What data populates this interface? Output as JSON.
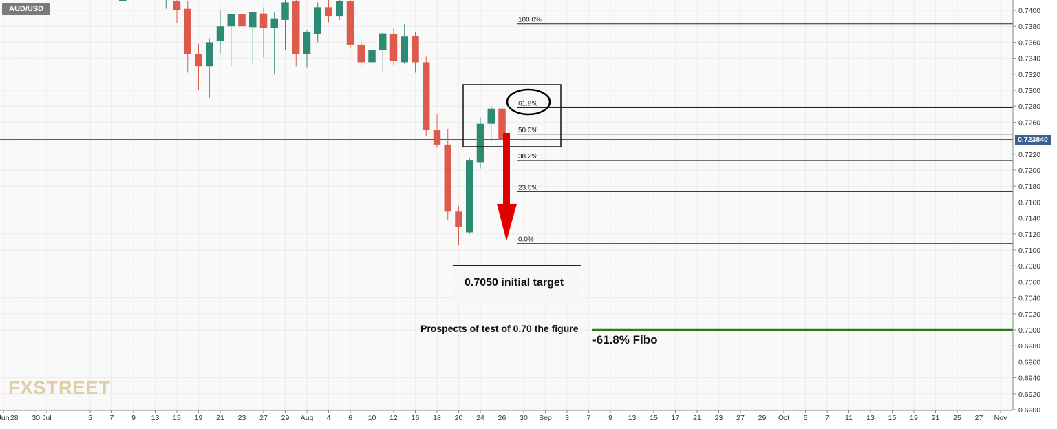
{
  "symbol": "AUD/USD",
  "last_price_label": "0.723840",
  "annotations": {
    "target": "0.7050 initial target",
    "prospects": "Prospects of test of 0.70 the figure",
    "fibo": "-61.8% Fibo"
  },
  "logo": "FXSTREET",
  "colors": {
    "up": "#2e8b73",
    "down": "#dd5b4d",
    "wick": "#666666",
    "grid": "#ececec",
    "fib_line": "#222222",
    "target_line": "#2d7a12",
    "arrow": "#e00000",
    "price_line": "#3b5f8f"
  },
  "chart_data": {
    "type": "candlestick",
    "title": "",
    "ylim": [
      0.69,
      0.7415
    ],
    "y_ticks": [
      "0.7400",
      "0.7380",
      "0.7360",
      "0.7340",
      "0.7320",
      "0.7300",
      "0.7280",
      "0.7260",
      "0.7240",
      "0.7220",
      "0.7200",
      "0.7180",
      "0.7160",
      "0.7140",
      "0.7120",
      "0.7100",
      "0.7080",
      "0.7060",
      "0.7040",
      "0.7020",
      "0.7000",
      "0.6980",
      "0.6960",
      "0.6940",
      "0.6920",
      "0.6900"
    ],
    "x_ticks": [
      {
        "day": 0,
        "label": "Jun"
      },
      {
        "day": 1,
        "label": "28"
      },
      {
        "day": 3,
        "label": "30"
      },
      {
        "day": 4,
        "label": "Jul"
      },
      {
        "day": 8,
        "label": "5"
      },
      {
        "day": 10,
        "label": "7"
      },
      {
        "day": 12,
        "label": "9"
      },
      {
        "day": 14,
        "label": "13"
      },
      {
        "day": 16,
        "label": "15"
      },
      {
        "day": 18,
        "label": "19"
      },
      {
        "day": 20,
        "label": "21"
      },
      {
        "day": 22,
        "label": "23"
      },
      {
        "day": 24,
        "label": "27"
      },
      {
        "day": 26,
        "label": "29"
      },
      {
        "day": 28,
        "label": "Aug"
      },
      {
        "day": 30,
        "label": "4"
      },
      {
        "day": 32,
        "label": "6"
      },
      {
        "day": 34,
        "label": "10"
      },
      {
        "day": 36,
        "label": "12"
      },
      {
        "day": 38,
        "label": "16"
      },
      {
        "day": 40,
        "label": "18"
      },
      {
        "day": 42,
        "label": "20"
      },
      {
        "day": 44,
        "label": "24"
      },
      {
        "day": 46,
        "label": "26"
      },
      {
        "day": 48,
        "label": "30"
      },
      {
        "day": 50,
        "label": "Sep"
      },
      {
        "day": 52,
        "label": "3"
      },
      {
        "day": 54,
        "label": "7"
      },
      {
        "day": 56,
        "label": "9"
      },
      {
        "day": 58,
        "label": "13"
      },
      {
        "day": 60,
        "label": "15"
      },
      {
        "day": 62,
        "label": "17"
      },
      {
        "day": 64,
        "label": "21"
      },
      {
        "day": 66,
        "label": "23"
      },
      {
        "day": 68,
        "label": "27"
      },
      {
        "day": 70,
        "label": "29"
      },
      {
        "day": 72,
        "label": "Oct"
      },
      {
        "day": 74,
        "label": "5"
      },
      {
        "day": 76,
        "label": "7"
      },
      {
        "day": 78,
        "label": "11"
      },
      {
        "day": 80,
        "label": "13"
      },
      {
        "day": 82,
        "label": "15"
      },
      {
        "day": 84,
        "label": "19"
      },
      {
        "day": 86,
        "label": "21"
      },
      {
        "day": 88,
        "label": "25"
      },
      {
        "day": 90,
        "label": "27"
      },
      {
        "day": 92,
        "label": "Nov"
      }
    ],
    "candles": [
      {
        "day": 11,
        "o": 0.7412,
        "h": 0.7415,
        "l": 0.7411,
        "c": 0.7413
      },
      {
        "day": 15,
        "o": 0.7413,
        "h": 0.7415,
        "l": 0.7402,
        "c": 0.7415
      },
      {
        "day": 16,
        "o": 0.7412,
        "h": 0.7415,
        "l": 0.7384,
        "c": 0.74
      },
      {
        "day": 17,
        "o": 0.7402,
        "h": 0.7412,
        "l": 0.7322,
        "c": 0.7345
      },
      {
        "day": 18,
        "o": 0.7345,
        "h": 0.7358,
        "l": 0.73,
        "c": 0.733
      },
      {
        "day": 19,
        "o": 0.733,
        "h": 0.7365,
        "l": 0.729,
        "c": 0.736
      },
      {
        "day": 20,
        "o": 0.7362,
        "h": 0.74,
        "l": 0.7345,
        "c": 0.738
      },
      {
        "day": 21,
        "o": 0.738,
        "h": 0.739,
        "l": 0.733,
        "c": 0.7395
      },
      {
        "day": 22,
        "o": 0.7395,
        "h": 0.7405,
        "l": 0.7368,
        "c": 0.738
      },
      {
        "day": 23,
        "o": 0.7379,
        "h": 0.7395,
        "l": 0.7332,
        "c": 0.7398
      },
      {
        "day": 24,
        "o": 0.7396,
        "h": 0.7404,
        "l": 0.7341,
        "c": 0.7378
      },
      {
        "day": 25,
        "o": 0.7378,
        "h": 0.7398,
        "l": 0.732,
        "c": 0.739
      },
      {
        "day": 26,
        "o": 0.7388,
        "h": 0.7415,
        "l": 0.735,
        "c": 0.741
      },
      {
        "day": 27,
        "o": 0.7412,
        "h": 0.7415,
        "l": 0.733,
        "c": 0.7345
      },
      {
        "day": 28,
        "o": 0.7345,
        "h": 0.7375,
        "l": 0.7328,
        "c": 0.7373
      },
      {
        "day": 29,
        "o": 0.737,
        "h": 0.741,
        "l": 0.736,
        "c": 0.7404
      },
      {
        "day": 30,
        "o": 0.7404,
        "h": 0.7415,
        "l": 0.7385,
        "c": 0.7393
      },
      {
        "day": 31,
        "o": 0.7393,
        "h": 0.7415,
        "l": 0.7388,
        "c": 0.7412
      },
      {
        "day": 32,
        "o": 0.7412,
        "h": 0.7415,
        "l": 0.7352,
        "c": 0.7357
      },
      {
        "day": 33,
        "o": 0.7357,
        "h": 0.736,
        "l": 0.733,
        "c": 0.7335
      },
      {
        "day": 34,
        "o": 0.7335,
        "h": 0.7355,
        "l": 0.7316,
        "c": 0.735
      },
      {
        "day": 35,
        "o": 0.735,
        "h": 0.7373,
        "l": 0.7323,
        "c": 0.7371
      },
      {
        "day": 36,
        "o": 0.737,
        "h": 0.7378,
        "l": 0.7331,
        "c": 0.7337
      },
      {
        "day": 37,
        "o": 0.7335,
        "h": 0.7383,
        "l": 0.7333,
        "c": 0.7367
      },
      {
        "day": 38,
        "o": 0.7368,
        "h": 0.7373,
        "l": 0.7322,
        "c": 0.7335
      },
      {
        "day": 39,
        "o": 0.7335,
        "h": 0.7342,
        "l": 0.7242,
        "c": 0.725
      },
      {
        "day": 40,
        "o": 0.725,
        "h": 0.727,
        "l": 0.7228,
        "c": 0.7232
      },
      {
        "day": 41,
        "o": 0.7232,
        "h": 0.7251,
        "l": 0.7138,
        "c": 0.7148
      },
      {
        "day": 42,
        "o": 0.7148,
        "h": 0.7155,
        "l": 0.7106,
        "c": 0.7129
      },
      {
        "day": 43,
        "o": 0.7122,
        "h": 0.7215,
        "l": 0.712,
        "c": 0.7212
      },
      {
        "day": 44,
        "o": 0.721,
        "h": 0.7266,
        "l": 0.7202,
        "c": 0.7258
      },
      {
        "day": 45,
        "o": 0.7258,
        "h": 0.7281,
        "l": 0.7236,
        "c": 0.7277
      },
      {
        "day": 46,
        "o": 0.7277,
        "h": 0.728,
        "l": 0.7233,
        "c": 0.7238
      }
    ],
    "last_price": 0.72384,
    "fib_levels": [
      {
        "label": "100.0%",
        "price": 0.7383
      },
      {
        "label": "61.8%",
        "price": 0.7278
      },
      {
        "label": "50.0%",
        "price": 0.7245
      },
      {
        "label": "38.2%",
        "price": 0.7212
      },
      {
        "label": "23.6%",
        "price": 0.7173
      },
      {
        "label": "0.0%",
        "price": 0.7108
      }
    ],
    "target_level": 0.7
  }
}
